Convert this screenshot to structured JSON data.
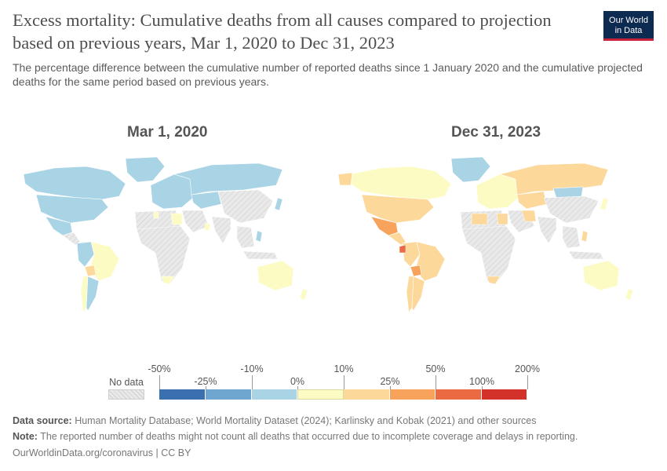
{
  "header": {
    "title": "Excess mortality: Cumulative deaths from all causes compared to projection based on previous years, Mar 1, 2020 to Dec 31, 2023",
    "subtitle": "The percentage difference between the cumulative number of reported deaths since 1 January 2020 and the cumulative projected deaths for the same period based on previous years.",
    "logo_line1": "Our World",
    "logo_line2": "in Data"
  },
  "maps": {
    "left_title": "Mar 1, 2020",
    "right_title": "Dec 31, 2023"
  },
  "legend": {
    "no_data_label": "No data",
    "upper_ticks": [
      "-50%",
      "-10%",
      "10%",
      "50%",
      "200%"
    ],
    "lower_ticks": [
      "-25%",
      "0%",
      "25%",
      "100%"
    ],
    "colors": [
      "#3a6fb0",
      "#6fa6cf",
      "#a9d4e6",
      "#fdfbc4",
      "#fcd89a",
      "#f7a35c",
      "#ec6a42",
      "#d3322b"
    ],
    "no_data_color": "#e6e6e6"
  },
  "colors": {
    "ocean": "#ffffff",
    "land_nodata": "#e3e3e3"
  },
  "footer": {
    "source_label": "Data source:",
    "source_text": " Human Mortality Database; World Mortality Dataset (2024); Karlinsky and Kobak (2021) and other sources",
    "note_label": "Note:",
    "note_text": " The reported number of deaths might not count all deaths that occurred due to incomplete coverage and delays in reporting.",
    "url_text": "OurWorldinData.org/coronavirus | CC BY"
  }
}
